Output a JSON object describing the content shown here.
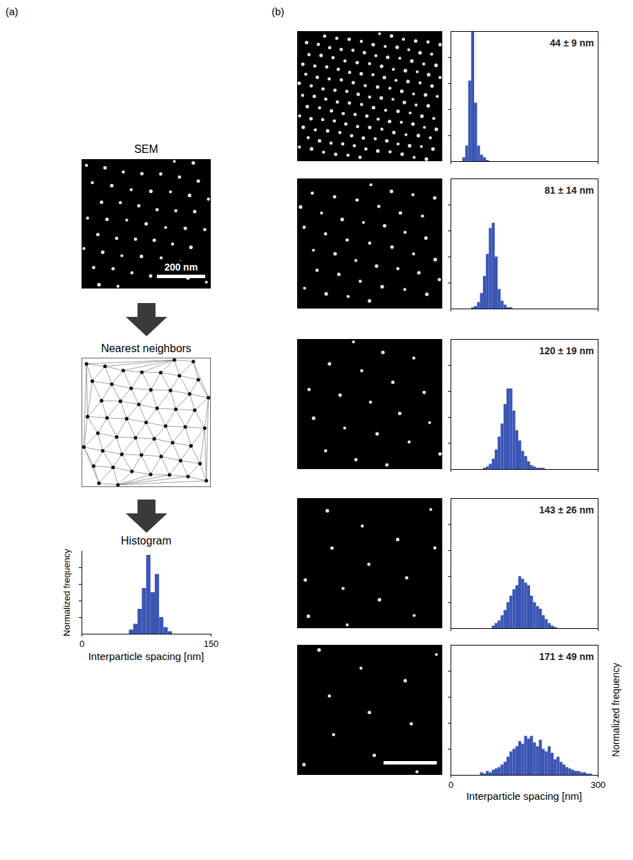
{
  "figure": {
    "a": {
      "label": "(a)",
      "steps": [
        "SEM",
        "Nearest neighbors",
        "Histogram"
      ],
      "scale_bar": "200 nm"
    },
    "b": {
      "label": "(b)"
    }
  },
  "chart_data": [
    {
      "type": "histogram",
      "xlabel": "Interparticle spacing [nm]",
      "ylabel": "Normalized frequency",
      "color": "#3b55b5",
      "bins": [
        55,
        60,
        65,
        70,
        75,
        80,
        85,
        90,
        95,
        100,
        105
      ],
      "counts": [
        0.05,
        0.12,
        0.3,
        0.55,
        0.95,
        0.5,
        0.72,
        0.2,
        0.08,
        0.03
      ],
      "xlim": [
        0,
        150
      ],
      "xticks": [
        0,
        150
      ],
      "ylim": [
        0,
        1
      ],
      "yticks": [
        0.2,
        0.4,
        0.6,
        0.8
      ],
      "tick_labels": "x"
    },
    {
      "type": "histogram",
      "title": "44 ± 9 nm",
      "color": "#3b55b5",
      "bins": [
        24,
        30,
        36,
        42,
        48,
        54,
        60,
        66,
        72,
        78
      ],
      "counts": [
        0.03,
        0.12,
        0.62,
        1.08,
        0.45,
        0.12,
        0.05,
        0.03,
        0.01
      ],
      "xlim": [
        0,
        300
      ],
      "xticks": [
        0,
        300
      ],
      "ylim": [
        0,
        1
      ],
      "yticks": [
        0.2,
        0.4,
        0.6,
        0.8
      ],
      "tick_labels": false
    },
    {
      "type": "histogram",
      "title": "81 ± 14 nm",
      "color": "#3b55b5",
      "bins": [
        42,
        48,
        54,
        60,
        66,
        72,
        78,
        84,
        90,
        96,
        102,
        108,
        114,
        120,
        126
      ],
      "counts": [
        0.01,
        0.02,
        0.05,
        0.12,
        0.25,
        0.42,
        0.62,
        0.66,
        0.4,
        0.15,
        0.06,
        0.03,
        0.01,
        0.01
      ],
      "xlim": [
        0,
        300
      ],
      "xticks": [
        0,
        300
      ],
      "ylim": [
        0,
        1
      ],
      "yticks": [
        0.2,
        0.4,
        0.6,
        0.8
      ],
      "tick_labels": false
    },
    {
      "type": "histogram",
      "title": "120 ± 19 nm",
      "color": "#3b55b5",
      "bins": [
        66,
        72,
        78,
        84,
        90,
        96,
        102,
        108,
        114,
        120,
        126,
        132,
        138,
        144,
        150,
        156,
        162,
        168,
        174,
        180,
        186,
        192
      ],
      "counts": [
        0.01,
        0.02,
        0.04,
        0.08,
        0.15,
        0.25,
        0.35,
        0.5,
        0.62,
        0.62,
        0.45,
        0.3,
        0.22,
        0.14,
        0.1,
        0.06,
        0.03,
        0.02,
        0.01,
        0.01,
        0.01
      ],
      "xlim": [
        0,
        300
      ],
      "xticks": [
        0,
        300
      ],
      "ylim": [
        0,
        1
      ],
      "yticks": [
        0.2,
        0.4,
        0.6,
        0.8
      ],
      "tick_labels": false
    },
    {
      "type": "histogram",
      "title": "143 ± 26 nm",
      "color": "#3b55b5",
      "bins": [
        84,
        90,
        96,
        102,
        108,
        114,
        120,
        126,
        132,
        138,
        144,
        150,
        156,
        162,
        168,
        174,
        180,
        186,
        192,
        198,
        204,
        210,
        216
      ],
      "counts": [
        0.02,
        0.04,
        0.06,
        0.1,
        0.14,
        0.2,
        0.25,
        0.3,
        0.33,
        0.4,
        0.38,
        0.35,
        0.33,
        0.25,
        0.2,
        0.17,
        0.15,
        0.1,
        0.07,
        0.04,
        0.02,
        0.01
      ],
      "xlim": [
        0,
        300
      ],
      "xticks": [
        0,
        300
      ],
      "ylim": [
        0,
        1
      ],
      "yticks": [
        0.2,
        0.4,
        0.6,
        0.8
      ],
      "tick_labels": false
    },
    {
      "type": "histogram",
      "title": "171 ± 49 nm",
      "xlabel": "Interparticle spacing [nm]",
      "ylabel": "Normalized frequency",
      "color": "#3b55b5",
      "bins": [
        60,
        66,
        72,
        78,
        84,
        90,
        96,
        102,
        108,
        114,
        120,
        126,
        132,
        138,
        144,
        150,
        156,
        162,
        168,
        174,
        180,
        186,
        192,
        198,
        204,
        210,
        216,
        222,
        228,
        234,
        240,
        246,
        252,
        258,
        264,
        270,
        276,
        282,
        288
      ],
      "counts": [
        0.02,
        0.01,
        0.03,
        0.02,
        0.04,
        0.05,
        0.06,
        0.08,
        0.1,
        0.14,
        0.18,
        0.2,
        0.22,
        0.26,
        0.24,
        0.3,
        0.28,
        0.3,
        0.25,
        0.22,
        0.27,
        0.2,
        0.18,
        0.22,
        0.17,
        0.12,
        0.14,
        0.1,
        0.08,
        0.06,
        0.05,
        0.04,
        0.03,
        0.03,
        0.02,
        0.02,
        0.01,
        0.01
      ],
      "xlim": [
        0,
        300
      ],
      "xticks": [
        0,
        300
      ],
      "ylim": [
        0,
        1
      ],
      "yticks": [
        0.2,
        0.4,
        0.6,
        0.8
      ],
      "tick_labels": "x"
    }
  ]
}
